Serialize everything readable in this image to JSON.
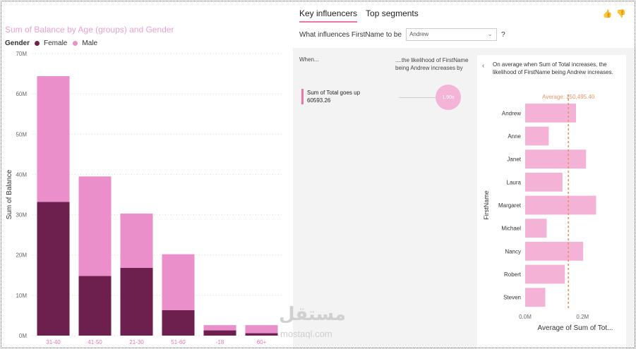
{
  "left_chart": {
    "title": "Sum of Balance by Age (groups) and Gender",
    "legend_title": "Gender",
    "colors": {
      "Female": "#6d1f4e",
      "Male": "#ea8fca"
    },
    "chart_data": {
      "type": "bar",
      "stacked": true,
      "title": "Sum of Balance by Age (groups) and Gender",
      "xlabel": "",
      "ylabel": "Sum of Balance",
      "categories": [
        "31-40",
        "41-50",
        "21-30",
        "51-60",
        "-18",
        "60+"
      ],
      "series": [
        {
          "name": "Female",
          "values": [
            33.2,
            14.8,
            16.8,
            6.3,
            1.3,
            0.6
          ]
        },
        {
          "name": "Male",
          "values": [
            31.2,
            24.7,
            13.5,
            13.9,
            1.3,
            2.0
          ]
        }
      ],
      "ylim": [
        0,
        70
      ],
      "yticks": [
        "0M",
        "10M",
        "20M",
        "30M",
        "40M",
        "50M",
        "60M",
        "70M"
      ],
      "grid": true,
      "legend_position": "top-left"
    }
  },
  "right_panel": {
    "tabs": [
      {
        "label": "Key influencers",
        "active": true
      },
      {
        "label": "Top segments",
        "active": false
      }
    ],
    "thumbs": {
      "up": "👍",
      "down": "👎"
    },
    "question": {
      "prefix": "What influences FirstName to be",
      "selected": "Andrew",
      "suffix": "?"
    },
    "when_header": "When...",
    "likely_header": "....the likelihood of FirstName being Andrew increases by",
    "influencer": {
      "line1": "Sum of Total goes up",
      "line2": "60593.26",
      "factor": "1.90x"
    },
    "detail": {
      "text": "On average when Sum of Total increases, the likelihood of FirstName being Andrew increases.",
      "average_label": "Average: 150,495.40"
    },
    "chart_data": {
      "type": "bar",
      "orientation": "horizontal",
      "xlabel": "Average of Sum of Tot...",
      "ylabel": "FirstName",
      "categories": [
        "Andrew",
        "Anne",
        "Janet",
        "Laura",
        "Margaret",
        "Michael",
        "Nancy",
        "Robert",
        "Steven"
      ],
      "values": [
        0.177,
        0.082,
        0.212,
        0.13,
        0.247,
        0.075,
        0.202,
        0.138,
        0.07
      ],
      "xlim": [
        0,
        0.3
      ],
      "xticks": [
        "0.0M",
        "0.2M"
      ],
      "reference_line": 0.1505,
      "bar_color": "#f4b3d6",
      "reference_color": "#e8946b"
    }
  },
  "watermark": {
    "main": "مستقل",
    "sub": "mostaql.com"
  }
}
